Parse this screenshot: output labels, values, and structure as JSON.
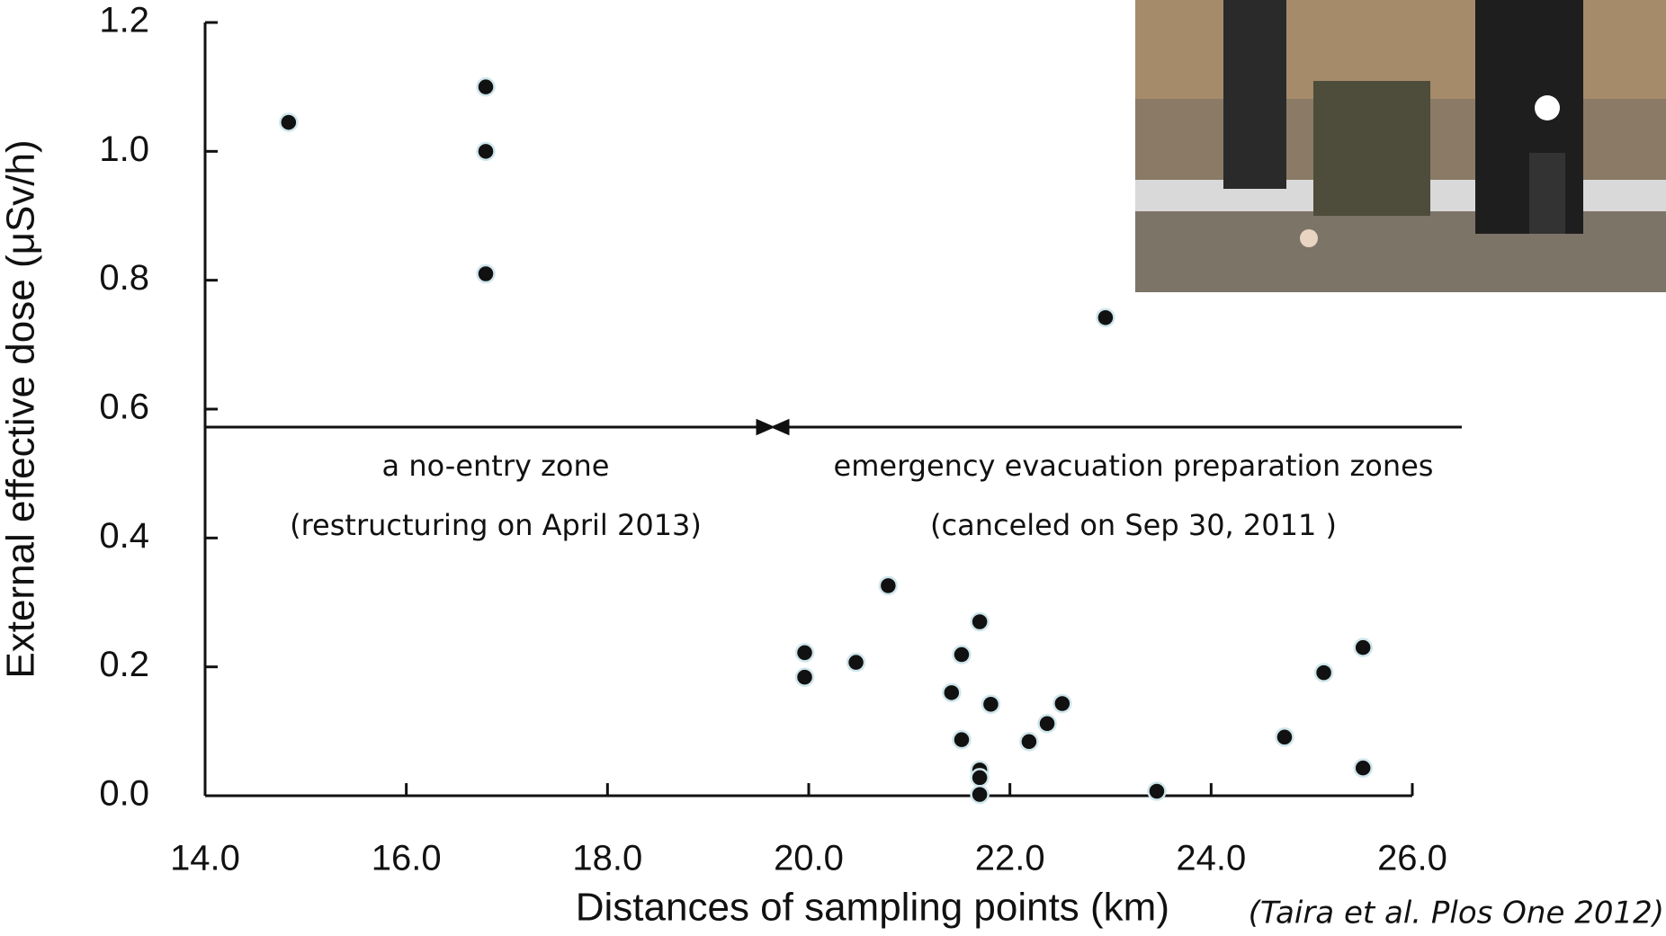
{
  "chart_data": {
    "type": "scatter",
    "x_label": "Distances of sampling points (km)",
    "y_label": "External effective dose (μSv/h)",
    "annotations": [
      "a no-entry zone",
      "(restructuring on April 2013)",
      "emergency evacuation preparation zones",
      "(canceled on Sep 30, 2011 )",
      "(Taira et al. Plos One 2012)"
    ],
    "xlim": [
      14,
      26
    ],
    "ylim": [
      0,
      1.2
    ],
    "xticks": [
      {
        "value": 14,
        "label": "14.0"
      },
      {
        "value": 16,
        "label": "16.0"
      },
      {
        "value": 18,
        "label": "18.0"
      },
      {
        "value": 20,
        "label": "20.0"
      },
      {
        "value": 22,
        "label": "22.0"
      },
      {
        "value": 24,
        "label": "24.0"
      },
      {
        "value": 26,
        "label": "26.0"
      }
    ],
    "yticks": [
      {
        "value": 0,
        "label": "0.0"
      },
      0.2,
      0.4,
      0.6,
      0.8,
      {
        "value": 1,
        "label": "1.0"
      },
      1.2
    ],
    "color": "#111111",
    "series": [
      {
        "x": [
          14.83,
          16.79,
          16.79,
          16.79,
          22.95,
          19.96,
          19.96,
          20.47,
          20.79,
          21.7,
          21.52,
          21.42,
          21.81,
          21.52,
          21.7,
          21.7,
          21.7,
          22.19,
          22.37,
          22.52,
          23.46,
          24.73,
          25.12,
          25.51,
          25.51
        ],
        "values": [
          1.045,
          1.1,
          1.0,
          0.81,
          0.742,
          0.222,
          0.184,
          0.207,
          0.326,
          0.27,
          0.219,
          0.16,
          0.142,
          0.087,
          0.04,
          0.028,
          0.002,
          0.084,
          0.112,
          0.143,
          0.007,
          0.091,
          0.191,
          0.23,
          0.043
        ]
      }
    ]
  }
}
